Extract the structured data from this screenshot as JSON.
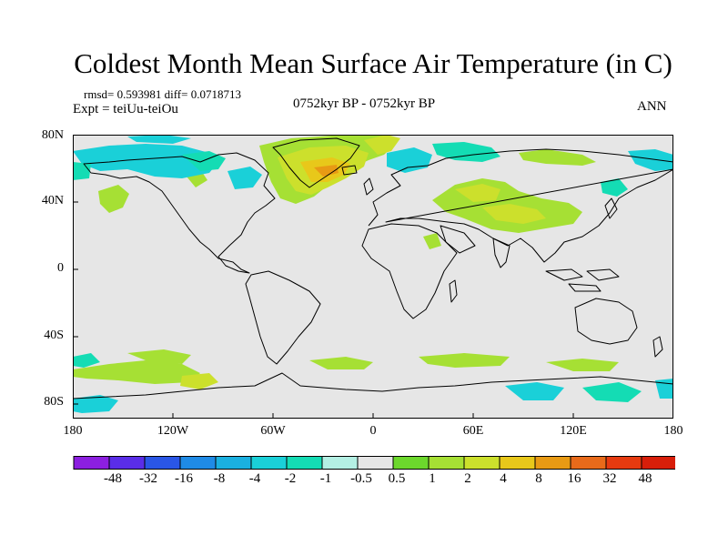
{
  "title": "Coldest Month Mean Surface Air Temperature (in C)",
  "stats": "rmsd= 0.593981 diff= 0.0718713",
  "expt": "Expt = teiUu-teiOu",
  "period": "0752kyr BP - 0752kyr BP",
  "season": "ANN",
  "lat_ticks": [
    "80N",
    "40N",
    "0",
    "40S",
    "80S"
  ],
  "lon_ticks": [
    "180",
    "120W",
    "60W",
    "0",
    "60E",
    "120E",
    "180"
  ],
  "colorbar": {
    "labels": [
      "-48",
      "-32",
      "-16",
      "-8",
      "-4",
      "-2",
      "-1",
      "-0.5",
      "0.5",
      "1",
      "2",
      "4",
      "8",
      "16",
      "32",
      "48"
    ],
    "colors": [
      "#8c1fe0",
      "#5a2de8",
      "#2a56e6",
      "#1f8be6",
      "#1ab0e0",
      "#1ad0d8",
      "#14dcb4",
      "#b4f0e4",
      "#e6e6e6",
      "#6cd82c",
      "#a6e034",
      "#cce02c",
      "#e8c81a",
      "#e89a14",
      "#e86a1a",
      "#e63a10",
      "#d81e0a"
    ]
  },
  "map": {
    "ocean_fill": "#e6e6e6",
    "anomaly_colors": {
      "cyan": "#1ad0d8",
      "teal": "#14dcb4",
      "green": "#a6e034",
      "yellowgreen": "#cce02c",
      "yellow": "#e8c81a",
      "orange": "#e89a14"
    }
  }
}
